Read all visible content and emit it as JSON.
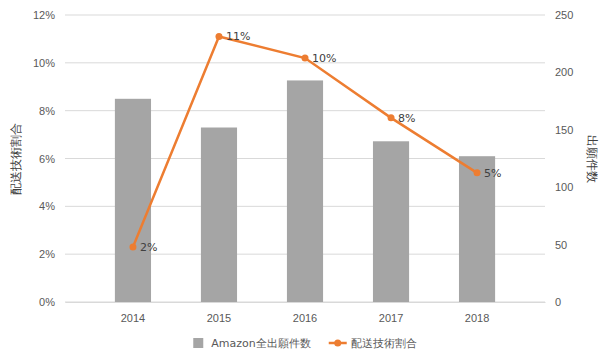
{
  "chart_data": {
    "type": "bar",
    "categories": [
      "2014",
      "2015",
      "2016",
      "2017",
      "2018"
    ],
    "series": [
      {
        "name": "Amazon全出願件数",
        "type": "bar",
        "color": "#a5a5a5",
        "axis": "y2",
        "values": [
          177,
          152,
          193,
          140,
          127
        ]
      },
      {
        "name": "配送技術割合",
        "type": "line",
        "color": "#ed7d31",
        "marker": "circle",
        "data_labels": true,
        "values": [
          2.3,
          11.1,
          10.2,
          7.7,
          5.4
        ],
        "value_labels": [
          "2%",
          "11%",
          "10%",
          "8%",
          "5%"
        ]
      }
    ],
    "y_label": "配送技術割合",
    "y2_label": "出願件数",
    "ylim": [
      0,
      12
    ],
    "yticks": [
      {
        "value": 0,
        "label": "0%"
      },
      {
        "value": 2,
        "label": "2%"
      },
      {
        "value": 4,
        "label": "4%"
      },
      {
        "value": 6,
        "label": "6%"
      },
      {
        "value": 8,
        "label": "8%"
      },
      {
        "value": 10,
        "label": "10%"
      },
      {
        "value": 12,
        "label": "12%"
      }
    ],
    "y2lim": [
      0,
      250
    ],
    "y2ticks": [
      0,
      50,
      100,
      150,
      200,
      250
    ],
    "grid": true,
    "legend": "bottom"
  }
}
